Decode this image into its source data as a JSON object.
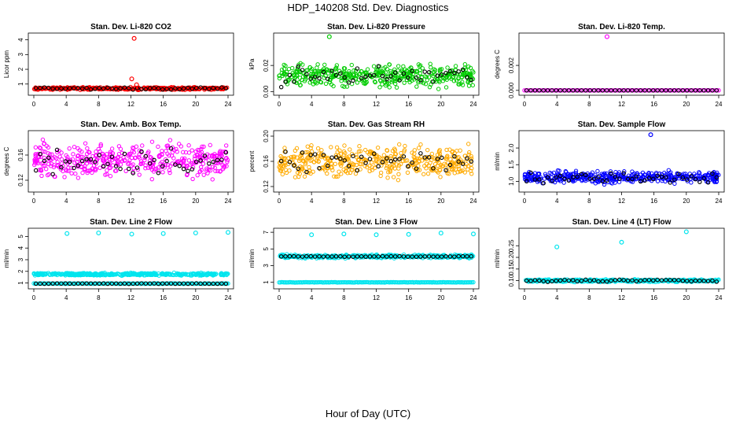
{
  "title": "HDP_140208  Std. Dev. Diagnostics",
  "x_title": "Hour of Day (UTC)",
  "chart_data": [
    {
      "type": "scatter",
      "title": "Stan. Dev. Li-820 CO2",
      "ylabel": "Licor ppm",
      "xlim": [
        0,
        24
      ],
      "x_ticks": [
        "0",
        "4",
        "8",
        "12",
        "16",
        "20",
        "24"
      ],
      "ylim": [
        0.4,
        4.3
      ],
      "y_ticks": [
        "1",
        "2",
        "3",
        "4"
      ],
      "y_tick_values": [
        1,
        2,
        3,
        4
      ],
      "color": "#ff0000",
      "baseline": 0.7,
      "noise": 0.06,
      "outliers": [
        {
          "x": 12.4,
          "y": 4.1
        },
        {
          "x": 12.1,
          "y": 1.35
        },
        {
          "x": 12.7,
          "y": 0.95
        }
      ]
    },
    {
      "type": "scatter",
      "title": "Stan. Dev. Li-820 Pressure",
      "ylabel": "kPa",
      "xlim": [
        0,
        24
      ],
      "x_ticks": [
        "0",
        "4",
        "8",
        "12",
        "16",
        "20",
        "24"
      ],
      "ylim": [
        -0.001,
        0.043
      ],
      "y_ticks": [
        "0.00",
        "0.02"
      ],
      "y_tick_values": [
        0.0,
        0.02
      ],
      "color": "#00cc00",
      "baseline": 0.012,
      "noise": 0.006,
      "outliers": [
        {
          "x": 6.2,
          "y": 0.042
        }
      ]
    },
    {
      "type": "scatter",
      "title": "Stan. Dev. Li-820 Temp.",
      "ylabel": "degrees C",
      "xlim": [
        0,
        24
      ],
      "x_ticks": [
        "0",
        "4",
        "8",
        "12",
        "16",
        "20",
        "24"
      ],
      "ylim": [
        -0.0002,
        0.0044
      ],
      "y_ticks": [
        "0.000",
        "0.002"
      ],
      "y_tick_values": [
        0.0,
        0.002
      ],
      "color": "#ff00ff",
      "baseline": 0.0,
      "noise": 0.0,
      "outliers": [
        {
          "x": 10.2,
          "y": 0.0043
        }
      ]
    },
    {
      "type": "scatter",
      "title": "Stan. Dev. Amb. Box Temp.",
      "ylabel": "degrees C",
      "xlim": [
        0,
        24
      ],
      "x_ticks": [
        "0",
        "4",
        "8",
        "12",
        "16",
        "20",
        "24"
      ],
      "ylim": [
        0.105,
        0.195
      ],
      "y_ticks": [
        "0.12",
        "0.16"
      ],
      "y_tick_values": [
        0.12,
        0.16
      ],
      "color": "#ff00ff",
      "baseline": 0.152,
      "noise": 0.018,
      "outliers": []
    },
    {
      "type": "scatter",
      "title": "Stan. Dev. Gas Stream RH",
      "ylabel": "percent",
      "xlim": [
        0,
        24
      ],
      "x_ticks": [
        "0",
        "4",
        "8",
        "12",
        "16",
        "20",
        "24"
      ],
      "ylim": [
        0.115,
        0.205
      ],
      "y_ticks": [
        "0.12",
        "0.16",
        "0.20"
      ],
      "y_tick_values": [
        0.12,
        0.16,
        0.2
      ],
      "color": "#ffaa00",
      "baseline": 0.16,
      "noise": 0.017,
      "outliers": []
    },
    {
      "type": "scatter",
      "title": "Stan. Dev. Sample Flow",
      "ylabel": "ml/min",
      "xlim": [
        0,
        24
      ],
      "x_ticks": [
        "0",
        "4",
        "8",
        "12",
        "16",
        "20",
        "24"
      ],
      "ylim": [
        0.75,
        2.45
      ],
      "y_ticks": [
        "1.0",
        "1.5",
        "2.0"
      ],
      "y_tick_values": [
        1.0,
        1.5,
        2.0
      ],
      "color": "#0000ff",
      "baseline": 1.12,
      "noise": 0.12,
      "outliers": [
        {
          "x": 15.6,
          "y": 2.4
        }
      ]
    },
    {
      "type": "scatter",
      "title": "Stan. Dev. Line 2 Flow",
      "ylabel": "ml/min",
      "xlim": [
        0,
        24
      ],
      "x_ticks": [
        "0",
        "4",
        "8",
        "12",
        "16",
        "20",
        "24"
      ],
      "ylim": [
        0.7,
        5.5
      ],
      "y_ticks": [
        "1",
        "2",
        "3",
        "4",
        "5"
      ],
      "y_tick_values": [
        1,
        2,
        3,
        4,
        5
      ],
      "color": "#00e5ee",
      "baseline": 1.75,
      "noise": 0.08,
      "outliers": [
        {
          "x": 4.1,
          "y": 5.25
        },
        {
          "x": 8.0,
          "y": 5.3
        },
        {
          "x": 12.1,
          "y": 5.2
        },
        {
          "x": 16.0,
          "y": 5.25
        },
        {
          "x": 20.0,
          "y": 5.3
        },
        {
          "x": 24.0,
          "y": 5.35
        }
      ]
    },
    {
      "type": "scatter",
      "title": "Stan. Dev. Line 3 Flow",
      "ylabel": "ml/min",
      "xlim": [
        0,
        24
      ],
      "x_ticks": [
        "0",
        "4",
        "8",
        "12",
        "16",
        "20",
        "24"
      ],
      "ylim": [
        0.5,
        7.2
      ],
      "y_ticks": [
        "1",
        "3",
        "5",
        "7"
      ],
      "y_tick_values": [
        1,
        3,
        5,
        7
      ],
      "color": "#00e5ee",
      "baseline": 4.1,
      "noise": 0.15,
      "outliers": [
        {
          "x": 4.0,
          "y": 6.7
        },
        {
          "x": 8.0,
          "y": 6.8
        },
        {
          "x": 12.0,
          "y": 6.7
        },
        {
          "x": 16.0,
          "y": 6.75
        },
        {
          "x": 20.0,
          "y": 6.9
        },
        {
          "x": 24.0,
          "y": 6.8
        }
      ]
    },
    {
      "type": "scatter",
      "title": "Stan. Dev. Line 4 (LT) Flow",
      "ylabel": "ml/min",
      "xlim": [
        0,
        24
      ],
      "x_ticks": [
        "0",
        "4",
        "8",
        "12",
        "16",
        "20",
        "24"
      ],
      "ylim": [
        0.075,
        0.315
      ],
      "y_ticks": [
        "0.10",
        "0.15",
        "0.20",
        "0.25"
      ],
      "y_tick_values": [
        0.1,
        0.15,
        0.2,
        0.25
      ],
      "color": "#00e5ee",
      "baseline": 0.1,
      "noise": 0.004,
      "outliers": [
        {
          "x": 4.0,
          "y": 0.245
        },
        {
          "x": 12.0,
          "y": 0.265
        },
        {
          "x": 20.0,
          "y": 0.31
        }
      ]
    }
  ]
}
